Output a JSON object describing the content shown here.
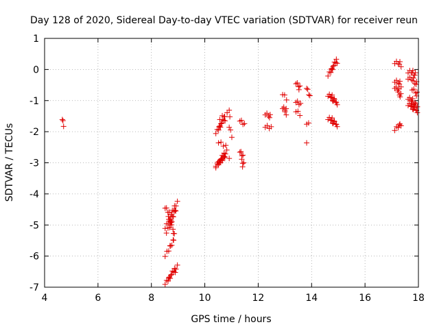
{
  "chart_data": {
    "type": "scatter",
    "title": "Day 128 of 2020, Sidereal Day-to-day VTEC variation (SDTVAR) for receiver reun",
    "xlabel": "GPS time / hours",
    "ylabel": "SDTVAR / TECUs",
    "xlim": [
      4,
      18
    ],
    "ylim": [
      -7,
      1
    ],
    "xticks": [
      4,
      6,
      8,
      10,
      12,
      14,
      16,
      18
    ],
    "yticks": [
      -7,
      -6,
      -5,
      -4,
      -3,
      -2,
      -1,
      0,
      1
    ],
    "xtick_labels": [
      "4",
      "6",
      "8",
      "10",
      "12",
      "14",
      "16",
      "18"
    ],
    "ytick_labels": [
      "-7",
      "-6",
      "-5",
      "-4",
      "-3",
      "-2",
      "-1",
      "0",
      "1"
    ],
    "grid": true,
    "marker": "+",
    "color": "#e00000",
    "segments": [
      {
        "x0": 4.7,
        "x1": 4.7,
        "y0": -1.55,
        "y1": -1.8,
        "n": 3
      },
      {
        "x0": 8.55,
        "x1": 8.95,
        "y0": -6.85,
        "y1": -6.35,
        "n": 14
      },
      {
        "x0": 8.55,
        "x1": 8.85,
        "y0": -5.95,
        "y1": -5.45,
        "n": 8
      },
      {
        "x0": 8.55,
        "x1": 8.95,
        "y0": -5.05,
        "y1": -4.3,
        "n": 14
      },
      {
        "x0": 8.55,
        "x1": 8.85,
        "y0": -4.4,
        "y1": -5.3,
        "n": 12
      },
      {
        "x0": 8.6,
        "x1": 8.9,
        "y0": -5.2,
        "y1": -4.55,
        "n": 10
      },
      {
        "x0": 10.45,
        "x1": 10.8,
        "y0": -3.1,
        "y1": -2.65,
        "n": 14
      },
      {
        "x0": 10.45,
        "x1": 10.75,
        "y0": -3.05,
        "y1": -2.8,
        "n": 8
      },
      {
        "x0": 10.45,
        "x1": 10.75,
        "y0": -2.0,
        "y1": -1.55,
        "n": 12
      },
      {
        "x0": 10.6,
        "x1": 10.8,
        "y0": -1.55,
        "y1": -1.45,
        "n": 4
      },
      {
        "x0": 10.55,
        "x1": 10.75,
        "y0": -2.3,
        "y1": -2.5,
        "n": 4
      },
      {
        "x0": 10.95,
        "x1": 10.95,
        "y0": -1.25,
        "y1": -1.55,
        "n": 2
      },
      {
        "x0": 10.95,
        "x1": 11.0,
        "y0": -1.8,
        "y1": -2.15,
        "n": 3
      },
      {
        "x0": 10.95,
        "x1": 10.95,
        "y0": -2.8,
        "y1": -2.8,
        "n": 1
      },
      {
        "x0": 11.35,
        "x1": 11.45,
        "y0": -1.6,
        "y1": -1.8,
        "n": 4
      },
      {
        "x0": 11.35,
        "x1": 11.45,
        "y0": -2.6,
        "y1": -3.1,
        "n": 8
      },
      {
        "x0": 12.3,
        "x1": 12.45,
        "y0": -1.4,
        "y1": -1.55,
        "n": 5
      },
      {
        "x0": 12.3,
        "x1": 12.45,
        "y0": -1.8,
        "y1": -1.9,
        "n": 4
      },
      {
        "x0": 12.95,
        "x1": 13.05,
        "y0": -0.75,
        "y1": -0.95,
        "n": 3
      },
      {
        "x0": 12.95,
        "x1": 13.05,
        "y0": -1.2,
        "y1": -1.4,
        "n": 6
      },
      {
        "x0": 13.45,
        "x1": 13.55,
        "y0": -0.4,
        "y1": -0.65,
        "n": 5
      },
      {
        "x0": 13.45,
        "x1": 13.55,
        "y0": -1.0,
        "y1": -1.15,
        "n": 4
      },
      {
        "x0": 13.45,
        "x1": 13.55,
        "y0": -1.3,
        "y1": -1.45,
        "n": 3
      },
      {
        "x0": 13.85,
        "x1": 13.9,
        "y0": -0.55,
        "y1": -0.9,
        "n": 4
      },
      {
        "x0": 13.85,
        "x1": 13.9,
        "y0": -1.7,
        "y1": -1.75,
        "n": 2
      },
      {
        "x0": 13.85,
        "x1": 13.85,
        "y0": -2.3,
        "y1": -2.3,
        "n": 1
      },
      {
        "x0": 14.65,
        "x1": 14.95,
        "y0": -0.15,
        "y1": 0.3,
        "n": 12
      },
      {
        "x0": 14.65,
        "x1": 14.95,
        "y0": -0.8,
        "y1": -1.1,
        "n": 12
      },
      {
        "x0": 14.65,
        "x1": 14.95,
        "y0": -1.55,
        "y1": -1.8,
        "n": 12
      },
      {
        "x0": 17.15,
        "x1": 17.35,
        "y0": 0.25,
        "y1": 0.15,
        "n": 6
      },
      {
        "x0": 17.15,
        "x1": 17.35,
        "y0": -0.35,
        "y1": -0.5,
        "n": 6
      },
      {
        "x0": 17.15,
        "x1": 17.35,
        "y0": -0.55,
        "y1": -0.85,
        "n": 8
      },
      {
        "x0": 17.15,
        "x1": 17.35,
        "y0": -1.9,
        "y1": -1.75,
        "n": 6
      },
      {
        "x0": 17.65,
        "x1": 17.9,
        "y0": -0.05,
        "y1": -0.15,
        "n": 8
      },
      {
        "x0": 17.65,
        "x1": 17.95,
        "y0": -0.25,
        "y1": -0.45,
        "n": 8
      },
      {
        "x0": 17.65,
        "x1": 17.95,
        "y0": -0.9,
        "y1": -1.2,
        "n": 10
      },
      {
        "x0": 17.65,
        "x1": 17.95,
        "y0": -1.1,
        "y1": -1.35,
        "n": 12
      },
      {
        "x0": 17.8,
        "x1": 17.95,
        "y0": -0.6,
        "y1": -0.85,
        "n": 5
      }
    ]
  }
}
